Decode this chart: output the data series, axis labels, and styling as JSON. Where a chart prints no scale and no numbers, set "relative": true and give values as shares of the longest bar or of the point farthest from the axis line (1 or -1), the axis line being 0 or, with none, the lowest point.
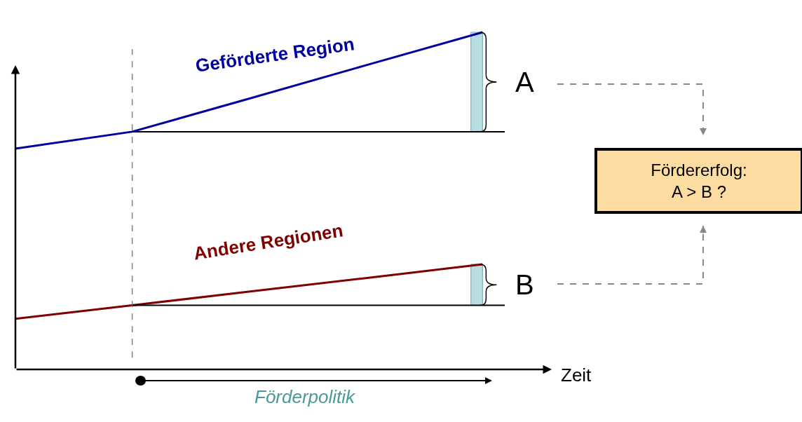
{
  "chart_data": {
    "type": "line",
    "relative": true,
    "xlabel": "Zeit",
    "categories": [
      null,
      null,
      null,
      null,
      null
    ],
    "series": [
      {
        "name": "Geförderte Region",
        "color": "#0000a0",
        "values": [
          0.655,
          0.705,
          0.803,
          0.902,
          1.0
        ]
      },
      {
        "name": "Andere Regionen",
        "color": "#800000",
        "values": [
          0.15,
          0.19,
          0.231,
          0.271,
          0.312
        ]
      }
    ],
    "ref_lines": [
      {
        "axis": "y",
        "value": 0.705,
        "color": "#000000",
        "line_style": "solid"
      },
      {
        "axis": "y",
        "value": 0.19,
        "color": "#000000",
        "line_style": "solid"
      }
    ],
    "annotations": [
      "A",
      "B",
      "Fördererfolg:\nA > B ?",
      "Förderpolitik"
    ],
    "legend": false,
    "marker": "none",
    "line_style": "solid"
  }
}
